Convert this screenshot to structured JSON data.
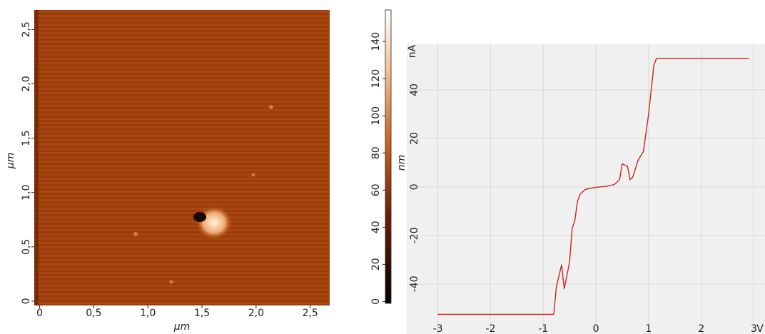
{
  "chart_data": [
    {
      "type": "heatmap",
      "xlabel": "µm",
      "ylabel": "µm",
      "xlim": [
        -0.05,
        2.68
      ],
      "ylim": [
        -0.04,
        2.68
      ],
      "xticks": [
        0,
        {
          "value": 0.5,
          "label": "0,5"
        },
        {
          "value": 1.0,
          "label": "1,0"
        },
        {
          "value": 1.5,
          "label": "1,5"
        },
        {
          "value": 2.0,
          "label": "2,0"
        },
        {
          "value": 2.5,
          "label": "2,5"
        }
      ],
      "yticks": [
        0,
        {
          "value": 0.5,
          "label": "0,5"
        },
        {
          "value": 1.0,
          "label": "1,0"
        },
        {
          "value": 1.5,
          "label": "1,5"
        },
        {
          "value": 2.0,
          "label": "2,0"
        },
        {
          "value": 2.5,
          "label": "2,5"
        }
      ],
      "colorbar": {
        "label": "nm",
        "lim": [
          -1,
          157
        ],
        "ticks": [
          0,
          20,
          40,
          60,
          80,
          100,
          120,
          140
        ]
      }
    },
    {
      "type": "line",
      "xlabel": "V",
      "ylabel": "nA",
      "xlim": [
        -3.59,
        3.21
      ],
      "ylim": [
        -60.6,
        58.8
      ],
      "xticks": [
        -3,
        -2,
        -1,
        0,
        1,
        2,
        3
      ],
      "yticks": [
        -40,
        -20,
        0,
        20,
        40
      ],
      "grid": true,
      "x": [
        -3,
        -0.8,
        -0.75,
        -0.65,
        -0.6,
        -0.5,
        -0.45,
        -0.4,
        -0.35,
        -0.3,
        -0.2,
        0,
        0.2,
        0.35,
        0.45,
        0.5,
        0.6,
        0.65,
        0.7,
        0.8,
        0.9,
        1.0,
        1.1,
        1.15,
        2.9
      ],
      "series": [
        {
          "color": "#c8281e",
          "values": [
            -52.5,
            -52.5,
            -41,
            -32,
            -42,
            -31,
            -17,
            -14,
            -6,
            -3,
            -1,
            -0.2,
            0.3,
            1,
            3,
            9.5,
            8.5,
            3,
            4,
            11,
            14.5,
            30,
            50,
            53,
            53
          ]
        }
      ]
    }
  ]
}
